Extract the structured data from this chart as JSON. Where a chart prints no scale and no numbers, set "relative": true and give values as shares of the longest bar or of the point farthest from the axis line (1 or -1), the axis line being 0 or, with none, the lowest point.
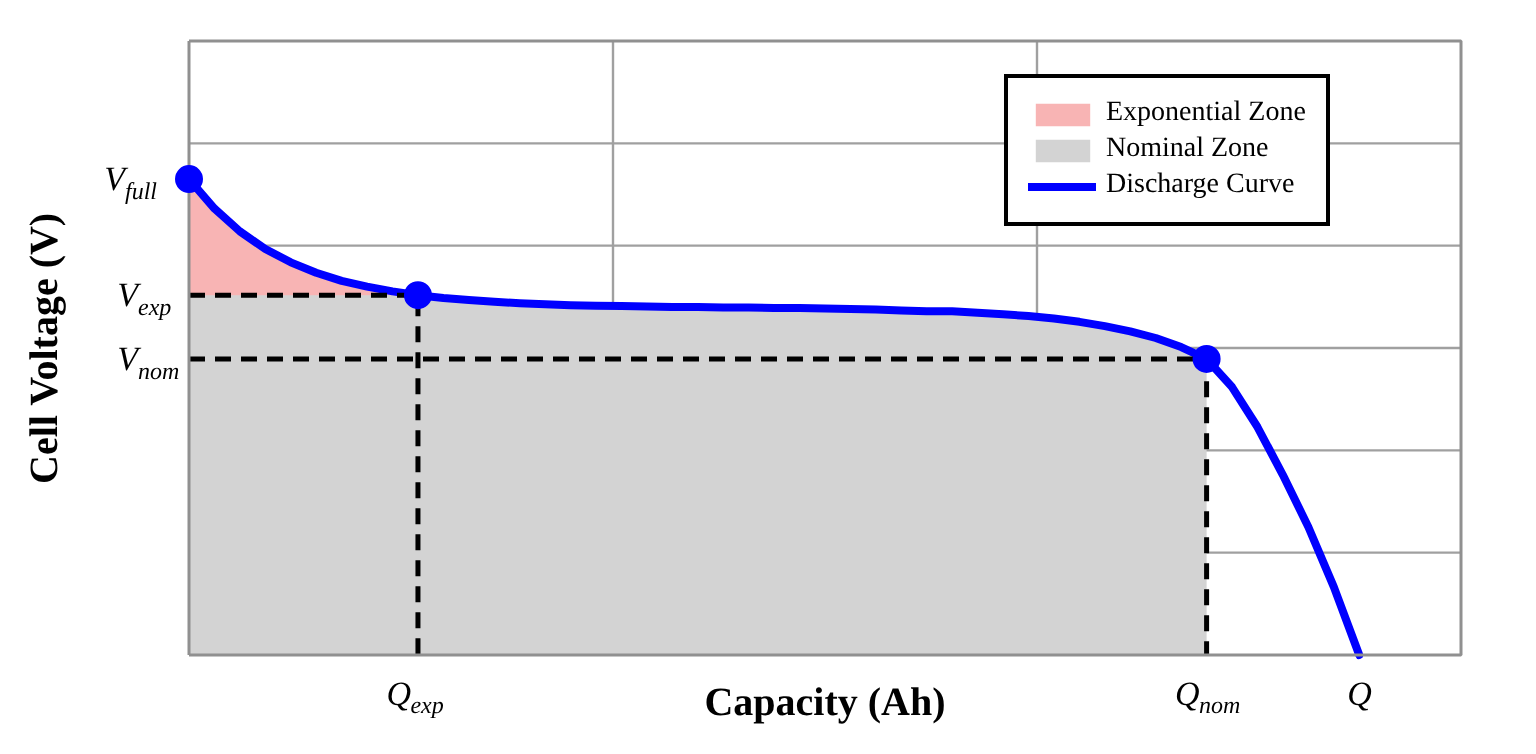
{
  "chart_data": {
    "type": "line",
    "relative": true,
    "xlabel": "Capacity (Ah)",
    "ylabel": "Cell Voltage (V)",
    "categories": [
      null,
      null,
      null,
      null,
      null,
      null,
      null,
      null,
      null,
      "Q$_{exp}$",
      null,
      null,
      null,
      null,
      null,
      null,
      null,
      null,
      null,
      null,
      null,
      null,
      null,
      null,
      null,
      null,
      null,
      null,
      null,
      null,
      null,
      null,
      null,
      null,
      null,
      null,
      null,
      null,
      null,
      null,
      "Q$_{nom}$",
      null,
      null,
      null,
      null,
      null,
      "Q",
      null,
      null,
      null,
      null
    ],
    "series": [
      {
        "name": "Exponential Zone",
        "type": "area",
        "color": "#f8b4b4",
        "values": [
          1.0,
          0.938,
          0.89,
          0.853,
          0.825,
          0.803,
          0.786,
          0.774,
          0.764,
          0.756,
          null,
          null,
          null,
          null,
          null,
          null,
          null,
          null,
          null,
          null,
          null,
          null,
          null,
          null,
          null,
          null,
          null,
          null,
          null,
          null,
          null,
          null,
          null,
          null,
          null,
          null,
          null,
          null,
          null,
          null,
          null,
          null,
          null,
          null,
          null,
          null,
          null,
          null,
          null,
          null,
          null
        ]
      },
      {
        "name": "Nominal Zone",
        "type": "area",
        "color": "#d3d3d3",
        "values": [
          0.756,
          0.756,
          0.756,
          0.756,
          0.756,
          0.756,
          0.756,
          0.756,
          0.756,
          0.756,
          0.75,
          0.746,
          0.742,
          0.739,
          0.737,
          0.735,
          0.734,
          0.733,
          0.732,
          0.731,
          0.731,
          0.73,
          0.73,
          0.729,
          0.729,
          0.728,
          0.727,
          0.726,
          0.724,
          0.722,
          0.722,
          0.719,
          0.716,
          0.712,
          0.707,
          0.7,
          0.691,
          0.68,
          0.666,
          0.647,
          0.622,
          null,
          null,
          null,
          null,
          null,
          null,
          null,
          null,
          null,
          null
        ]
      },
      {
        "name": "Discharge Curve",
        "color": "#0000ff",
        "values": [
          1.0,
          0.938,
          0.89,
          0.853,
          0.825,
          0.803,
          0.786,
          0.774,
          0.764,
          0.756,
          0.75,
          0.746,
          0.742,
          0.739,
          0.737,
          0.735,
          0.734,
          0.733,
          0.732,
          0.731,
          0.731,
          0.73,
          0.73,
          0.729,
          0.729,
          0.728,
          0.727,
          0.726,
          0.724,
          0.722,
          0.722,
          0.719,
          0.716,
          0.712,
          0.707,
          0.7,
          0.691,
          0.68,
          0.666,
          0.647,
          0.622,
          0.563,
          0.479,
          0.378,
          0.269,
          0.143,
          0.0,
          null,
          null,
          null,
          null
        ]
      },
      {
        "type": "scatter",
        "color": "#0000ff",
        "marker": "circle",
        "values": [
          1.0,
          null,
          null,
          null,
          null,
          null,
          null,
          null,
          null,
          null,
          null,
          null,
          null,
          null,
          null,
          null,
          null,
          null,
          null,
          null,
          null,
          null,
          null,
          null,
          null,
          null,
          null,
          null,
          null,
          null,
          null,
          null,
          null,
          null,
          null,
          null,
          null,
          null,
          null,
          null,
          null,
          null,
          null,
          null,
          null,
          null,
          null,
          null,
          null,
          null,
          null
        ]
      },
      {
        "type": "scatter",
        "color": "#0000ff",
        "marker": "circle",
        "line_style": "dashed",
        "values": [
          null,
          null,
          null,
          null,
          null,
          null,
          null,
          null,
          null,
          0.756,
          null,
          null,
          null,
          null,
          null,
          null,
          null,
          null,
          null,
          null,
          null,
          null,
          null,
          null,
          null,
          null,
          null,
          null,
          null,
          null,
          null,
          null,
          null,
          null,
          null,
          null,
          null,
          null,
          null,
          null,
          0.622,
          null,
          null,
          null,
          null,
          null,
          null,
          null,
          null,
          null,
          null
        ]
      }
    ],
    "annotations": [
      "V$_{full}$",
      "V$_{exp}$",
      "V$_{nom}$"
    ],
    "grid": true,
    "legend": "top right",
    "tick_labels": "x"
  }
}
